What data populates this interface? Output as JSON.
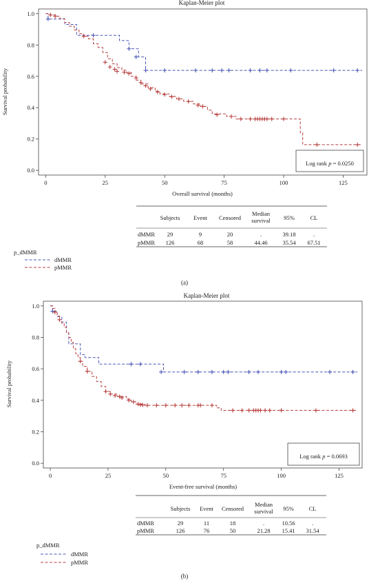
{
  "panels": [
    {
      "id": "a",
      "panel_label": "(a)",
      "log_rank_text": "Log rank p = 0.0250",
      "log_rank_prefix": "Log rank ",
      "log_rank_var": "p",
      "log_rank_value": " = 0.0250",
      "chart_data": {
        "type": "line",
        "title": "Kaplan-Meier plot",
        "xlabel": "Overall survival (months)",
        "ylabel": "Survival probability",
        "xlim": [
          -3,
          135
        ],
        "ylim": [
          -0.03,
          1.03
        ],
        "xticks": [
          0,
          25,
          50,
          75,
          100,
          125
        ],
        "yticks": [
          0.0,
          0.2,
          0.4,
          0.6,
          0.8,
          1.0
        ],
        "ytick_labels": [
          "0.0",
          "0.2",
          "0.4",
          "0.6",
          "0.8",
          "1.0"
        ],
        "grid": false,
        "step": true,
        "series": [
          {
            "name": "dMMR",
            "color": "#4a56b5",
            "step_points": [
              [
                0,
                1.0
              ],
              [
                1,
                0.966
              ],
              [
                8,
                0.931
              ],
              [
                13,
                0.862
              ],
              [
                31,
                0.828
              ],
              [
                35,
                0.776
              ],
              [
                39,
                0.724
              ],
              [
                42,
                0.638
              ],
              [
                133,
                0.638
              ]
            ],
            "censor_times": [
              [
                1,
                0.966
              ],
              [
                20,
                0.862
              ],
              [
                35,
                0.776
              ],
              [
                38,
                0.724
              ],
              [
                42,
                0.638
              ],
              [
                50,
                0.638
              ],
              [
                63,
                0.638
              ],
              [
                70,
                0.638
              ],
              [
                74,
                0.638
              ],
              [
                77,
                0.638
              ],
              [
                86,
                0.638
              ],
              [
                90,
                0.638
              ],
              [
                93,
                0.638
              ],
              [
                103,
                0.638
              ],
              [
                121,
                0.638
              ],
              [
                131,
                0.638
              ]
            ]
          },
          {
            "name": "pMMR",
            "color": "#b83c3c",
            "step_points": [
              [
                0,
                1.0
              ],
              [
                2,
                0.992
              ],
              [
                4,
                0.984
              ],
              [
                6,
                0.968
              ],
              [
                8,
                0.944
              ],
              [
                10,
                0.92
              ],
              [
                12,
                0.896
              ],
              [
                14,
                0.872
              ],
              [
                16,
                0.856
              ],
              [
                18,
                0.84
              ],
              [
                20,
                0.808
              ],
              [
                22,
                0.784
              ],
              [
                24,
                0.752
              ],
              [
                26,
                0.712
              ],
              [
                28,
                0.68
              ],
              [
                30,
                0.656
              ],
              [
                32,
                0.64
              ],
              [
                34,
                0.624
              ],
              [
                36,
                0.6
              ],
              [
                38,
                0.576
              ],
              [
                40,
                0.552
              ],
              [
                43,
                0.528
              ],
              [
                46,
                0.504
              ],
              [
                48,
                0.488
              ],
              [
                52,
                0.472
              ],
              [
                55,
                0.456
              ],
              [
                58,
                0.44
              ],
              [
                62,
                0.424
              ],
              [
                65,
                0.408
              ],
              [
                68,
                0.384
              ],
              [
                70,
                0.36
              ],
              [
                76,
                0.344
              ],
              [
                80,
                0.328
              ],
              [
                107,
                0.24
              ],
              [
                108,
                0.164
              ],
              [
                133,
                0.164
              ]
            ],
            "censor_times": [
              [
                2,
                0.992
              ],
              [
                4,
                0.984
              ],
              [
                16,
                0.856
              ],
              [
                25,
                0.69
              ],
              [
                27,
                0.66
              ],
              [
                29,
                0.645
              ],
              [
                30,
                0.632
              ],
              [
                33,
                0.626
              ],
              [
                35,
                0.618
              ],
              [
                38,
                0.59
              ],
              [
                40,
                0.56
              ],
              [
                42,
                0.54
              ],
              [
                44,
                0.52
              ],
              [
                47,
                0.5
              ],
              [
                50,
                0.484
              ],
              [
                53,
                0.47
              ],
              [
                56,
                0.456
              ],
              [
                60,
                0.44
              ],
              [
                64,
                0.416
              ],
              [
                66,
                0.408
              ],
              [
                72,
                0.355
              ],
              [
                78,
                0.344
              ],
              [
                82,
                0.328
              ],
              [
                86,
                0.328
              ],
              [
                88,
                0.328
              ],
              [
                89,
                0.328
              ],
              [
                90,
                0.328
              ],
              [
                91,
                0.328
              ],
              [
                92,
                0.328
              ],
              [
                93,
                0.328
              ],
              [
                95,
                0.328
              ],
              [
                100,
                0.328
              ],
              [
                114,
                0.164
              ],
              [
                131,
                0.164
              ]
            ]
          }
        ],
        "legend": {
          "title": "p_dMMR",
          "placement": "bottom-left"
        }
      },
      "table": {
        "headers": [
          "",
          "Subjects",
          "Event",
          "Censored",
          "Median\nsurvival",
          "95%",
          "CL"
        ],
        "rows": [
          [
            "dMMR",
            "29",
            "9",
            "20",
            ".",
            "39.18",
            "."
          ],
          [
            "pMMR",
            "126",
            "68",
            "58",
            "44.46",
            "35.54",
            "67.51"
          ]
        ]
      }
    },
    {
      "id": "b",
      "panel_label": "(b)",
      "log_rank_text": "Log rank p = 0.0693",
      "log_rank_prefix": "Log rank ",
      "log_rank_var": "p",
      "log_rank_value": " = 0.0693",
      "chart_data": {
        "type": "line",
        "title": "Kaplan-Meier plot",
        "xlabel": "Event-free survival (months)",
        "ylabel": "Survival probability",
        "xlim": [
          -3,
          135
        ],
        "ylim": [
          -0.03,
          1.03
        ],
        "xticks": [
          0,
          25,
          50,
          75,
          100,
          125
        ],
        "yticks": [
          0.0,
          0.2,
          0.4,
          0.6,
          0.8,
          1.0
        ],
        "ytick_labels": [
          "0.0",
          "0.2",
          "0.4",
          "0.6",
          "0.8",
          "1.0"
        ],
        "grid": false,
        "step": true,
        "series": [
          {
            "name": "dMMR",
            "color": "#4a56b5",
            "step_points": [
              [
                0,
                1.0
              ],
              [
                1,
                0.966
              ],
              [
                3,
                0.931
              ],
              [
                5,
                0.897
              ],
              [
                7,
                0.828
              ],
              [
                8,
                0.759
              ],
              [
                13,
                0.69
              ],
              [
                15,
                0.672
              ],
              [
                21,
                0.63
              ],
              [
                49,
                0.58
              ],
              [
                133,
                0.58
              ]
            ],
            "censor_times": [
              [
                1,
                0.966
              ],
              [
                35,
                0.63
              ],
              [
                39,
                0.63
              ],
              [
                48,
                0.58
              ],
              [
                58,
                0.58
              ],
              [
                64,
                0.58
              ],
              [
                70,
                0.58
              ],
              [
                75,
                0.58
              ],
              [
                77,
                0.58
              ],
              [
                86,
                0.58
              ],
              [
                90,
                0.58
              ],
              [
                100,
                0.58
              ],
              [
                102,
                0.58
              ],
              [
                121,
                0.58
              ],
              [
                131,
                0.58
              ]
            ]
          },
          {
            "name": "pMMR",
            "color": "#b83c3c",
            "step_points": [
              [
                0,
                1.0
              ],
              [
                1,
                0.984
              ],
              [
                2,
                0.96
              ],
              [
                3,
                0.936
              ],
              [
                4,
                0.912
              ],
              [
                5,
                0.888
              ],
              [
                6,
                0.864
              ],
              [
                7,
                0.832
              ],
              [
                8,
                0.8
              ],
              [
                9,
                0.768
              ],
              [
                10,
                0.728
              ],
              [
                11,
                0.696
              ],
              [
                12,
                0.672
              ],
              [
                13,
                0.648
              ],
              [
                14,
                0.616
              ],
              [
                16,
                0.584
              ],
              [
                18,
                0.552
              ],
              [
                20,
                0.52
              ],
              [
                22,
                0.488
              ],
              [
                24,
                0.456
              ],
              [
                26,
                0.44
              ],
              [
                29,
                0.424
              ],
              [
                33,
                0.408
              ],
              [
                35,
                0.392
              ],
              [
                37,
                0.376
              ],
              [
                41,
                0.368
              ],
              [
                72,
                0.352
              ],
              [
                74,
                0.336
              ],
              [
                133,
                0.336
              ]
            ],
            "censor_times": [
              [
                2,
                0.96
              ],
              [
                4,
                0.912
              ],
              [
                13,
                0.648
              ],
              [
                16,
                0.584
              ],
              [
                24,
                0.456
              ],
              [
                26,
                0.44
              ],
              [
                28,
                0.43
              ],
              [
                30,
                0.424
              ],
              [
                31,
                0.416
              ],
              [
                34,
                0.4
              ],
              [
                36,
                0.39
              ],
              [
                38,
                0.376
              ],
              [
                39,
                0.372
              ],
              [
                40,
                0.37
              ],
              [
                42,
                0.368
              ],
              [
                46,
                0.368
              ],
              [
                50,
                0.368
              ],
              [
                54,
                0.368
              ],
              [
                57,
                0.368
              ],
              [
                60,
                0.368
              ],
              [
                64,
                0.368
              ],
              [
                65,
                0.368
              ],
              [
                70,
                0.368
              ],
              [
                79,
                0.336
              ],
              [
                83,
                0.336
              ],
              [
                86,
                0.336
              ],
              [
                88,
                0.336
              ],
              [
                89,
                0.336
              ],
              [
                90,
                0.336
              ],
              [
                91,
                0.336
              ],
              [
                93,
                0.336
              ],
              [
                95,
                0.336
              ],
              [
                100,
                0.336
              ],
              [
                115,
                0.336
              ],
              [
                131,
                0.336
              ]
            ]
          }
        ],
        "legend": {
          "title": "p_dMMR",
          "placement": "bottom-left"
        }
      },
      "table": {
        "headers": [
          "",
          "Subjects",
          "Event",
          "Censored",
          "Median\nsurvival",
          "95%",
          "CL"
        ],
        "rows": [
          [
            "dMMR",
            "29",
            "11",
            "18",
            ".",
            "10.56",
            "."
          ],
          [
            "pMMR",
            "126",
            "76",
            "50",
            "21.28",
            "15.41",
            "31.54"
          ]
        ]
      }
    }
  ]
}
